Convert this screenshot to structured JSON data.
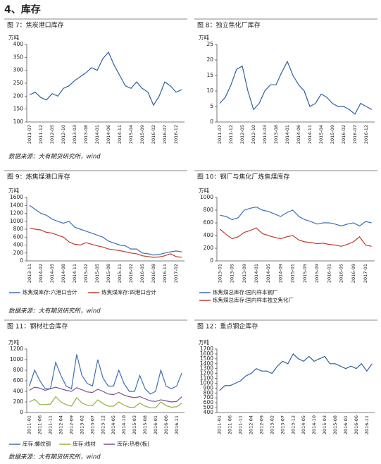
{
  "heading": "4、库存",
  "source_notes": [
    "数据来源：大有期货研究所，wind",
    "数据来源：大有期货研究所，wind",
    "数据来源：大有期货研究所，wind"
  ],
  "chart_data": [
    {
      "type": "line",
      "title": "图 7：焦炭港口库存",
      "y_label": "万吨",
      "color": "#2e5f9e",
      "categories": [
        "2011-07",
        null,
        "2011-12",
        null,
        "2012-05",
        null,
        "2012-10",
        null,
        "2013-03",
        null,
        "2013-08",
        null,
        "2014-01",
        null,
        "2014-06",
        null,
        "2014-11",
        null,
        "2015-04",
        null,
        "2015-09",
        null,
        "2016-02",
        null,
        "2016-07",
        null,
        "2016-12",
        null
      ],
      "values": [
        205,
        215,
        195,
        185,
        210,
        200,
        230,
        240,
        260,
        275,
        290,
        310,
        300,
        345,
        370,
        320,
        280,
        240,
        230,
        255,
        230,
        215,
        165,
        200,
        255,
        240,
        215,
        225
      ],
      "ylim": [
        100,
        400
      ],
      "yticks": [
        100,
        150,
        200,
        250,
        300,
        350,
        400
      ],
      "grid": false
    },
    {
      "type": "line",
      "title": "图 8：独立焦化厂库存",
      "y_label": "万吨",
      "color": "#2e5f9e",
      "categories": [
        "2011-07",
        null,
        "2011-12",
        null,
        "2012-05",
        null,
        "2012-10",
        null,
        "2013-03",
        null,
        "2013-08",
        null,
        "2014-01",
        null,
        "2014-06",
        null,
        "2014-11",
        null,
        "2015-04",
        null,
        "2015-09",
        null,
        "2016-02",
        null,
        "2016-07",
        null,
        "2016-12",
        null
      ],
      "values": [
        6,
        8,
        12,
        17,
        18,
        10,
        4,
        6,
        10,
        12,
        12,
        16,
        19.5,
        15,
        12,
        10,
        5,
        6,
        9,
        8,
        6,
        5,
        5,
        4,
        2.5,
        6,
        5,
        4
      ],
      "ylim": [
        0,
        25
      ],
      "yticks": [
        0,
        5,
        10,
        15,
        20,
        25
      ],
      "grid": false
    },
    {
      "type": "line",
      "title": "图 9：炼焦煤港口库存",
      "y_label": "万吨",
      "legend": "bottom",
      "categories": [
        "2013-11",
        null,
        "2014-02",
        null,
        "2014-05",
        null,
        "2014-08",
        null,
        "2014-11",
        null,
        "2015-02",
        null,
        "2015-05",
        null,
        "2015-08",
        null,
        "2015-11",
        null,
        "2016-02",
        null,
        "2016-05",
        null,
        "2016-08",
        null,
        "2016-11",
        null,
        "2017-02",
        null
      ],
      "series": [
        {
          "name": "炼焦煤库存:六港口合计",
          "color": "#3b6fb6",
          "values": [
            1400,
            1300,
            1200,
            1150,
            1050,
            1000,
            950,
            1000,
            850,
            800,
            750,
            700,
            650,
            600,
            500,
            450,
            400,
            380,
            300,
            300,
            200,
            180,
            150,
            160,
            200,
            230,
            250,
            230
          ]
        },
        {
          "name": "炼焦煤库存:四港口合计",
          "color": "#c0392b",
          "values": [
            830,
            800,
            780,
            720,
            700,
            650,
            600,
            480,
            420,
            400,
            460,
            420,
            380,
            350,
            300,
            280,
            260,
            230,
            200,
            180,
            130,
            110,
            90,
            100,
            130,
            180,
            110,
            90
          ]
        }
      ],
      "ylim": [
        0,
        1600
      ],
      "yticks": [
        0,
        200,
        400,
        600,
        800,
        1000,
        1200,
        1400,
        1600
      ],
      "grid": false
    },
    {
      "type": "line",
      "title": "图 10：钢厂与焦化厂炼焦煤库存",
      "y_label": "万吨",
      "legend": "bottom",
      "categories": [
        "2013-01",
        null,
        "2013-05",
        null,
        "2013-09",
        null,
        "2014-01",
        null,
        "2014-05",
        null,
        "2014-09",
        null,
        "2015-01",
        null,
        "2015-05",
        null,
        "2015-09",
        null,
        "2016-01",
        null,
        "2016-05",
        null,
        "2016-09",
        null,
        "2017-01",
        null
      ],
      "series": [
        {
          "name": "炼焦煤总库存:国内样本钢厂",
          "color": "#3b6fb6",
          "values": [
            720,
            700,
            650,
            680,
            800,
            830,
            850,
            800,
            780,
            740,
            700,
            760,
            800,
            700,
            650,
            620,
            580,
            600,
            600,
            580,
            550,
            580,
            600,
            550,
            620,
            600
          ]
        },
        {
          "name": "炼焦煤总库存:国内样本独立焦化厂",
          "color": "#c0392b",
          "values": [
            500,
            420,
            350,
            380,
            450,
            480,
            520,
            430,
            400,
            370,
            350,
            380,
            400,
            330,
            300,
            290,
            270,
            280,
            260,
            250,
            230,
            260,
            300,
            380,
            250,
            230
          ]
        }
      ],
      "ylim": [
        0,
        1000
      ],
      "yticks": [
        0,
        200,
        400,
        600,
        800,
        1000
      ],
      "grid": false
    },
    {
      "type": "line",
      "title": "图 11：钢材社会库存",
      "y_label": "万吨",
      "legend": "bottom",
      "categories": [
        "2011-01",
        null,
        "2011-06",
        null,
        "2011-11",
        null,
        "2012-04",
        null,
        "2012-09",
        null,
        "2013-02",
        null,
        "2013-07",
        null,
        "2013-12",
        null,
        "2014-05",
        null,
        "2014-10",
        null,
        "2015-03",
        null,
        "2015-08",
        null,
        "2016-01",
        null,
        "2016-06",
        null,
        "2016-11",
        null
      ],
      "series": [
        {
          "name": "库存:螺纹钢",
          "color": "#3b6fb6",
          "values": [
            500,
            800,
            600,
            450,
            450,
            950,
            700,
            500,
            450,
            1100,
            700,
            550,
            500,
            1000,
            650,
            500,
            500,
            800,
            550,
            400,
            400,
            700,
            450,
            350,
            400,
            800,
            500,
            450,
            500,
            750
          ]
        },
        {
          "name": "库存:线材",
          "color": "#8db33a",
          "values": [
            200,
            250,
            150,
            150,
            160,
            300,
            200,
            150,
            120,
            280,
            180,
            140,
            130,
            240,
            170,
            120,
            120,
            200,
            140,
            100,
            100,
            180,
            120,
            90,
            90,
            200,
            130,
            100,
            110,
            180
          ]
        },
        {
          "name": "库存:热卷(板)",
          "color": "#7a4f9a",
          "values": [
            420,
            480,
            460,
            420,
            450,
            480,
            450,
            420,
            400,
            470,
            430,
            390,
            380,
            440,
            400,
            350,
            340,
            380,
            330,
            300,
            280,
            300,
            260,
            220,
            210,
            240,
            220,
            200,
            210,
            300
          ]
        }
      ],
      "ylim": [
        0,
        1200
      ],
      "yticks": [
        0,
        200,
        400,
        600,
        800,
        1000,
        1200
      ],
      "grid": false
    },
    {
      "type": "line",
      "title": "图 12：重点钢企库存",
      "y_label": "万吨",
      "color": "#2e5f9e",
      "categories": [
        "2011-01",
        null,
        "2011-06",
        null,
        "2011-11",
        null,
        "2012-04",
        null,
        "2012-09",
        null,
        "2013-02",
        null,
        "2013-07",
        null,
        "2013-12",
        null,
        "2014-05",
        null,
        "2014-10",
        null,
        "2015-03",
        null,
        "2015-08",
        null,
        "2016-01",
        null,
        "2016-06",
        null,
        "2016-11",
        null
      ],
      "values": [
        850,
        950,
        950,
        1000,
        1050,
        1150,
        1200,
        1300,
        1250,
        1250,
        1200,
        1350,
        1450,
        1400,
        1600,
        1500,
        1450,
        1550,
        1450,
        1500,
        1550,
        1400,
        1400,
        1350,
        1300,
        1350,
        1300,
        1400,
        1250,
        1400
      ],
      "ylim": [
        400,
        1700
      ],
      "yticks": [
        400,
        500,
        600,
        700,
        800,
        900,
        1000,
        1100,
        1200,
        1300,
        1400,
        1500,
        1600,
        1700
      ],
      "grid": false
    }
  ]
}
